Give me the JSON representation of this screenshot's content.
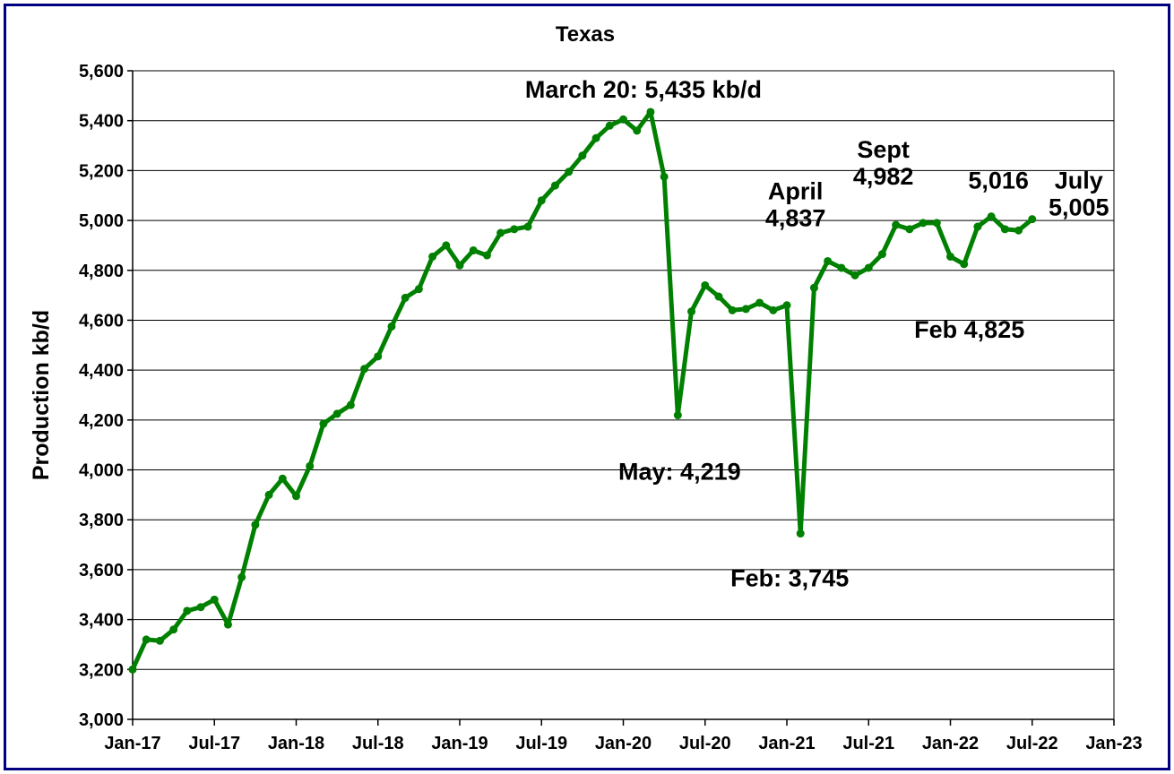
{
  "chart_data": {
    "type": "line",
    "title": "Texas",
    "xlabel": "",
    "ylabel": "Production kb/d",
    "ylim": [
      3000,
      5600
    ],
    "y_ticks": [
      3000,
      3200,
      3400,
      3600,
      3800,
      4000,
      4200,
      4400,
      4600,
      4800,
      5000,
      5200,
      5400,
      5600
    ],
    "y_tick_labels": [
      "3,000",
      "3,200",
      "3,400",
      "3,600",
      "3,800",
      "4,000",
      "4,200",
      "4,400",
      "4,600",
      "4,800",
      "5,000",
      "5,200",
      "5,400",
      "5,600"
    ],
    "x_range": [
      "2017-01",
      "2023-01"
    ],
    "x_ticks": [
      "2017-01",
      "2017-07",
      "2018-01",
      "2018-07",
      "2019-01",
      "2019-07",
      "2020-01",
      "2020-07",
      "2021-01",
      "2021-07",
      "2022-01",
      "2022-07",
      "2023-01"
    ],
    "x_tick_labels": [
      "Jan-17",
      "Jul-17",
      "Jan-18",
      "Jul-18",
      "Jan-19",
      "Jul-19",
      "Jan-20",
      "Jul-20",
      "Jan-21",
      "Jul-21",
      "Jan-22",
      "Jul-22",
      "Jan-23"
    ],
    "grid": true,
    "legend": "none",
    "series": [
      {
        "color": "#008000",
        "x": [
          "2017-01",
          "2017-02",
          "2017-03",
          "2017-04",
          "2017-05",
          "2017-06",
          "2017-07",
          "2017-08",
          "2017-09",
          "2017-10",
          "2017-11",
          "2017-12",
          "2018-01",
          "2018-02",
          "2018-03",
          "2018-04",
          "2018-05",
          "2018-06",
          "2018-07",
          "2018-08",
          "2018-09",
          "2018-10",
          "2018-11",
          "2018-12",
          "2019-01",
          "2019-02",
          "2019-03",
          "2019-04",
          "2019-05",
          "2019-06",
          "2019-07",
          "2019-08",
          "2019-09",
          "2019-10",
          "2019-11",
          "2019-12",
          "2020-01",
          "2020-02",
          "2020-03",
          "2020-04",
          "2020-05",
          "2020-06",
          "2020-07",
          "2020-08",
          "2020-09",
          "2020-10",
          "2020-11",
          "2020-12",
          "2021-01",
          "2021-02",
          "2021-03",
          "2021-04",
          "2021-05",
          "2021-06",
          "2021-07",
          "2021-08",
          "2021-09",
          "2021-10",
          "2021-11",
          "2021-12",
          "2022-01",
          "2022-02",
          "2022-03",
          "2022-04",
          "2022-05",
          "2022-06",
          "2022-07"
        ],
        "values": [
          3200,
          3320,
          3315,
          3360,
          3435,
          3450,
          3480,
          3380,
          3570,
          3780,
          3900,
          3965,
          3895,
          4015,
          4185,
          4225,
          4260,
          4405,
          4455,
          4575,
          4690,
          4725,
          4855,
          4900,
          4820,
          4880,
          4860,
          4950,
          4965,
          4975,
          5080,
          5140,
          5195,
          5260,
          5330,
          5380,
          5405,
          5360,
          5435,
          5175,
          4219,
          4635,
          4740,
          4695,
          4640,
          4645,
          4670,
          4640,
          4660,
          3745,
          4730,
          4837,
          4810,
          4780,
          4810,
          4865,
          4982,
          4965,
          4990,
          4990,
          4855,
          4825,
          4975,
          5016,
          4965,
          4960,
          5005
        ]
      }
    ],
    "annotations": [
      {
        "lines": [
          "March 20: 5,435 kb/d"
        ],
        "x": "2020-03"
      },
      {
        "lines": [
          "May: 4,219"
        ],
        "x": "2020-05"
      },
      {
        "lines": [
          "Feb: 3,745"
        ],
        "x": "2021-02"
      },
      {
        "lines": [
          "April",
          "4,837"
        ],
        "x": "2021-04"
      },
      {
        "lines": [
          "Sept",
          "4,982"
        ],
        "x": "2021-09"
      },
      {
        "lines": [
          "5,016"
        ],
        "x": "2022-04"
      },
      {
        "lines": [
          "Feb 4,825"
        ],
        "x": "2022-02"
      },
      {
        "lines": [
          "July",
          "5,005"
        ],
        "x": "2022-07"
      }
    ]
  }
}
